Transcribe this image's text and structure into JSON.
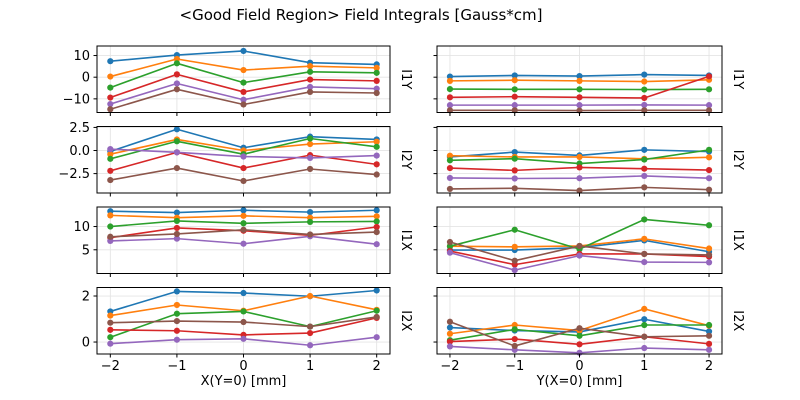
{
  "title": "<Good Field Region> Field Integrals [Gauss*cm]",
  "palette": {
    "blue": "#1f77b4",
    "orange": "#ff7f0e",
    "green": "#2ca02c",
    "red": "#d62728",
    "purple": "#9467bd",
    "brown": "#8c564b"
  },
  "axes": {
    "xlim": [
      -2.2,
      2.2
    ],
    "x_ticks": [
      -2,
      -1,
      0,
      1,
      2
    ],
    "x_tick_labels": [
      "−2",
      "−1",
      "0",
      "1",
      "2"
    ],
    "grid": true,
    "legend": "none"
  },
  "chart_data": [
    {
      "type": "line",
      "row": 0,
      "col": 0,
      "row_label": "I1Y",
      "xlabel": "",
      "show_xtick_labels": false,
      "show_ytick_labels": true,
      "ylim": [
        -16.3,
        14.4
      ],
      "yticks": [
        10,
        0,
        -10
      ],
      "ytick_labels": [
        "10",
        "0",
        "−10"
      ],
      "x": [
        -2,
        -1,
        0,
        1,
        2
      ],
      "series": [
        {
          "name": "blue",
          "values": [
            7.4,
            10.2,
            12.1,
            6.7,
            5.9
          ]
        },
        {
          "name": "orange",
          "values": [
            0.3,
            8.4,
            3.3,
            5.1,
            4.3
          ]
        },
        {
          "name": "green",
          "values": [
            -4.8,
            6.4,
            -2.5,
            2.5,
            2.0
          ]
        },
        {
          "name": "red",
          "values": [
            -9.4,
            1.3,
            -6.8,
            -1.1,
            -1.7
          ]
        },
        {
          "name": "purple",
          "values": [
            -12.4,
            -2.9,
            -10.4,
            -4.5,
            -5.3
          ]
        },
        {
          "name": "brown",
          "values": [
            -14.8,
            -5.6,
            -12.6,
            -6.8,
            -7.3
          ]
        }
      ]
    },
    {
      "type": "line",
      "row": 0,
      "col": 1,
      "row_label": "I1Y",
      "xlabel": "",
      "show_xtick_labels": false,
      "show_ytick_labels": false,
      "ylim": [
        -16.3,
        14.4
      ],
      "yticks": [
        10,
        0,
        -10
      ],
      "ytick_labels": [
        "10",
        "0",
        "−10"
      ],
      "x": [
        -2,
        -1,
        0,
        1,
        2
      ],
      "series": [
        {
          "name": "blue",
          "values": [
            0.3,
            0.8,
            0.5,
            1.2,
            0.8
          ]
        },
        {
          "name": "orange",
          "values": [
            -1.7,
            -1.4,
            -1.7,
            -2.0,
            -1.2
          ]
        },
        {
          "name": "green",
          "values": [
            -5.5,
            -5.6,
            -5.6,
            -5.7,
            -5.6
          ]
        },
        {
          "name": "red",
          "values": [
            -9.3,
            -9.0,
            -9.3,
            -9.6,
            0.4
          ]
        },
        {
          "name": "purple",
          "values": [
            -12.9,
            -12.9,
            -12.9,
            -12.8,
            -12.9
          ]
        },
        {
          "name": "brown",
          "values": [
            -15.3,
            -15.3,
            -15.4,
            -15.3,
            -15.3
          ]
        }
      ]
    },
    {
      "type": "line",
      "row": 1,
      "col": 0,
      "row_label": "I2Y",
      "xlabel": "",
      "show_xtick_labels": false,
      "show_ytick_labels": true,
      "ylim": [
        -4.6,
        2.6
      ],
      "yticks": [
        2.5,
        0.0,
        -2.5
      ],
      "ytick_labels": [
        "2.5",
        "0.0",
        "−2.5"
      ],
      "x": [
        -2,
        -1,
        0,
        1,
        2
      ],
      "series": [
        {
          "name": "blue",
          "values": [
            -0.1,
            2.3,
            0.3,
            1.5,
            1.2
          ]
        },
        {
          "name": "orange",
          "values": [
            -0.4,
            1.2,
            0.0,
            0.7,
            0.95
          ]
        },
        {
          "name": "green",
          "values": [
            -0.9,
            1.0,
            -0.4,
            1.3,
            0.4
          ]
        },
        {
          "name": "red",
          "values": [
            -2.2,
            -0.2,
            -1.9,
            -0.5,
            -1.5
          ]
        },
        {
          "name": "purple",
          "values": [
            0.15,
            -0.2,
            -0.65,
            -0.8,
            -0.55
          ]
        },
        {
          "name": "brown",
          "values": [
            -3.2,
            -1.9,
            -3.3,
            -2.0,
            -2.6
          ]
        }
      ]
    },
    {
      "type": "line",
      "row": 1,
      "col": 1,
      "row_label": "I2Y",
      "xlabel": "",
      "show_xtick_labels": false,
      "show_ytick_labels": false,
      "ylim": [
        -4.6,
        2.6
      ],
      "yticks": [
        2.5,
        0.0,
        -2.5
      ],
      "ytick_labels": [
        "2.5",
        "0.0",
        "−2.5"
      ],
      "x": [
        -2,
        -1,
        0,
        1,
        2
      ],
      "series": [
        {
          "name": "blue",
          "values": [
            -0.7,
            -0.17,
            -0.53,
            0.07,
            -0.11
          ]
        },
        {
          "name": "orange",
          "values": [
            -0.56,
            -0.7,
            -0.7,
            -0.9,
            -0.74
          ]
        },
        {
          "name": "green",
          "values": [
            -1.06,
            -0.88,
            -1.41,
            -0.98,
            0.07
          ]
        },
        {
          "name": "red",
          "values": [
            -1.9,
            -2.15,
            -1.83,
            -1.97,
            -2.12
          ]
        },
        {
          "name": "purple",
          "values": [
            -2.97,
            -3.03,
            -3.0,
            -2.75,
            -3.0
          ]
        },
        {
          "name": "brown",
          "values": [
            -4.16,
            -4.09,
            -4.34,
            -3.99,
            -4.24
          ]
        }
      ]
    },
    {
      "type": "line",
      "row": 2,
      "col": 0,
      "row_label": "I1X",
      "xlabel": "",
      "show_xtick_labels": false,
      "show_ytick_labels": true,
      "ylim": [
        -0.1,
        14.2
      ],
      "yticks": [
        10,
        5
      ],
      "ytick_labels": [
        "10",
        "5"
      ],
      "x": [
        -2,
        -1,
        0,
        1,
        2
      ],
      "series": [
        {
          "name": "blue",
          "values": [
            13.3,
            13.0,
            13.5,
            13.1,
            13.5
          ]
        },
        {
          "name": "orange",
          "values": [
            12.4,
            11.9,
            12.3,
            11.9,
            12.2
          ]
        },
        {
          "name": "green",
          "values": [
            10.0,
            11.2,
            10.7,
            11.0,
            11.1
          ]
        },
        {
          "name": "red",
          "values": [
            7.6,
            9.7,
            9.1,
            8.1,
            9.9
          ]
        },
        {
          "name": "purple",
          "values": [
            6.9,
            7.4,
            6.3,
            7.9,
            6.2
          ]
        },
        {
          "name": "brown",
          "values": [
            7.8,
            8.4,
            9.3,
            8.3,
            8.8
          ]
        }
      ]
    },
    {
      "type": "line",
      "row": 2,
      "col": 1,
      "row_label": "I1X",
      "xlabel": "",
      "show_xtick_labels": false,
      "show_ytick_labels": false,
      "ylim": [
        -0.1,
        14.2
      ],
      "yticks": [
        10,
        5
      ],
      "ytick_labels": [
        "10",
        "5"
      ],
      "x": [
        -2,
        -1,
        0,
        1,
        2
      ],
      "series": [
        {
          "name": "blue",
          "values": [
            4.94,
            4.94,
            5.48,
            7.02,
            4.58
          ]
        },
        {
          "name": "orange",
          "values": [
            5.77,
            5.63,
            5.83,
            7.35,
            5.27
          ]
        },
        {
          "name": "green",
          "values": [
            5.77,
            9.31,
            5.15,
            11.52,
            10.27
          ]
        },
        {
          "name": "red",
          "values": [
            4.73,
            1.81,
            4.1,
            4.1,
            3.54
          ]
        },
        {
          "name": "purple",
          "values": [
            4.38,
            0.63,
            3.75,
            2.35,
            2.29
          ]
        },
        {
          "name": "brown",
          "values": [
            6.67,
            2.65,
            5.83,
            4.1,
            3.9
          ]
        }
      ]
    },
    {
      "type": "line",
      "row": 3,
      "col": 0,
      "row_label": "I2X",
      "xlabel": "X(Y=0) [mm]",
      "show_xtick_labels": true,
      "show_ytick_labels": true,
      "ylim": [
        -0.52,
        2.37
      ],
      "yticks": [
        2,
        0
      ],
      "ytick_labels": [
        "2",
        "0"
      ],
      "x": [
        -2,
        -1,
        0,
        1,
        2
      ],
      "series": [
        {
          "name": "blue",
          "values": [
            1.33,
            2.2,
            2.13,
            1.99,
            2.24
          ]
        },
        {
          "name": "orange",
          "values": [
            1.15,
            1.61,
            1.36,
            2.0,
            1.4
          ]
        },
        {
          "name": "green",
          "values": [
            0.21,
            1.23,
            1.33,
            0.67,
            1.36
          ]
        },
        {
          "name": "red",
          "values": [
            0.53,
            0.49,
            0.31,
            0.39,
            1.05
          ]
        },
        {
          "name": "purple",
          "values": [
            -0.07,
            0.1,
            0.14,
            -0.14,
            0.21
          ]
        },
        {
          "name": "brown",
          "values": [
            0.84,
            0.91,
            0.87,
            0.67,
            1.09
          ]
        }
      ]
    },
    {
      "type": "line",
      "row": 3,
      "col": 1,
      "row_label": "I2X",
      "xlabel": "Y(X=0) [mm]",
      "show_xtick_labels": true,
      "show_ytick_labels": false,
      "ylim": [
        -0.52,
        2.37
      ],
      "yticks": [
        2,
        0
      ],
      "ytick_labels": [
        "2",
        "0"
      ],
      "x": [
        -2,
        -1,
        0,
        1,
        2
      ],
      "series": [
        {
          "name": "blue",
          "values": [
            0.63,
            0.5,
            0.44,
            0.99,
            0.46
          ]
        },
        {
          "name": "orange",
          "values": [
            0.36,
            0.74,
            0.5,
            1.44,
            0.71
          ]
        },
        {
          "name": "green",
          "values": [
            0.08,
            0.55,
            0.27,
            0.74,
            0.74
          ]
        },
        {
          "name": "red",
          "values": [
            0.02,
            0.13,
            -0.1,
            0.23,
            -0.08
          ]
        },
        {
          "name": "purple",
          "values": [
            -0.19,
            -0.34,
            -0.47,
            -0.26,
            -0.34
          ]
        },
        {
          "name": "brown",
          "values": [
            0.88,
            -0.17,
            0.6,
            0.23,
            0.27
          ]
        }
      ]
    }
  ]
}
